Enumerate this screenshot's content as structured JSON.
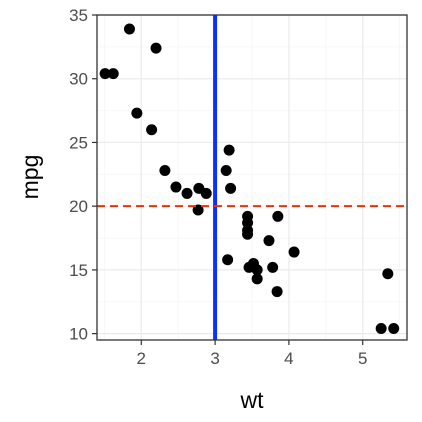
{
  "chart_data": {
    "type": "scatter",
    "title": "",
    "xlabel": "wt",
    "ylabel": "mpg",
    "xlim": [
      1.4,
      5.6
    ],
    "ylim": [
      9.5,
      35
    ],
    "x_ticks": [
      2,
      3,
      4,
      5
    ],
    "y_ticks": [
      10,
      15,
      20,
      25,
      30,
      35
    ],
    "grid": true,
    "legend": "none",
    "colors": {
      "points": "#000000",
      "vline": "#0b30ff",
      "hline": "#ff2a00",
      "grid_major": "#ebebeb",
      "grid_minor": "#f5f5f5",
      "panel_border": "#333333"
    },
    "reference_lines": [
      {
        "orientation": "vertical",
        "value": 3,
        "style": "solid",
        "color": "#0b30ff"
      },
      {
        "orientation": "horizontal",
        "value": 20,
        "style": "dashed",
        "color": "#ff2a00"
      }
    ],
    "points": [
      {
        "x": 1.51,
        "y": 30.4
      },
      {
        "x": 1.62,
        "y": 30.4
      },
      {
        "x": 1.84,
        "y": 33.9
      },
      {
        "x": 1.94,
        "y": 27.3
      },
      {
        "x": 2.14,
        "y": 26.0
      },
      {
        "x": 2.2,
        "y": 32.4
      },
      {
        "x": 2.32,
        "y": 22.8
      },
      {
        "x": 2.47,
        "y": 21.5
      },
      {
        "x": 2.62,
        "y": 21.0
      },
      {
        "x": 2.77,
        "y": 19.7
      },
      {
        "x": 2.78,
        "y": 21.4
      },
      {
        "x": 2.88,
        "y": 21.0
      },
      {
        "x": 3.15,
        "y": 22.8
      },
      {
        "x": 3.17,
        "y": 15.8
      },
      {
        "x": 3.19,
        "y": 24.4
      },
      {
        "x": 3.21,
        "y": 21.4
      },
      {
        "x": 3.44,
        "y": 18.7
      },
      {
        "x": 3.44,
        "y": 19.2
      },
      {
        "x": 3.44,
        "y": 17.8
      },
      {
        "x": 3.44,
        "y": 18.1
      },
      {
        "x": 3.46,
        "y": 15.2
      },
      {
        "x": 3.52,
        "y": 15.5
      },
      {
        "x": 3.57,
        "y": 15.0
      },
      {
        "x": 3.57,
        "y": 14.3
      },
      {
        "x": 3.73,
        "y": 17.3
      },
      {
        "x": 3.78,
        "y": 15.2
      },
      {
        "x": 3.84,
        "y": 13.3
      },
      {
        "x": 3.85,
        "y": 19.2
      },
      {
        "x": 4.07,
        "y": 16.4
      },
      {
        "x": 5.25,
        "y": 10.4
      },
      {
        "x": 5.34,
        "y": 14.7
      },
      {
        "x": 5.42,
        "y": 10.4
      }
    ]
  }
}
